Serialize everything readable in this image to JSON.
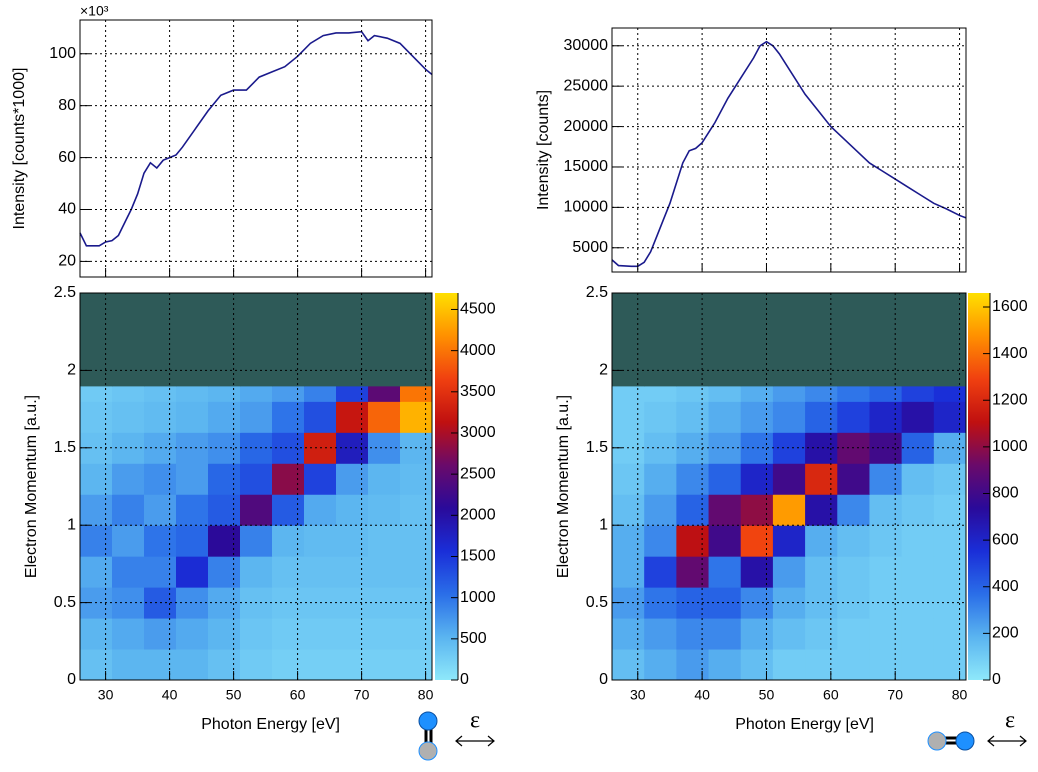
{
  "chart_data": [
    {
      "type": "line",
      "ylabel": "Intensity [counts*1000]",
      "y_multiplier": "×10³",
      "xlim": [
        26,
        81
      ],
      "xticks": [
        30,
        40,
        50,
        60,
        70,
        80
      ],
      "ylim": [
        14,
        113
      ],
      "yticks": [
        20,
        40,
        60,
        80,
        100
      ],
      "grid": true,
      "x": [
        26,
        27,
        29,
        30,
        31,
        32,
        33,
        34,
        35,
        36,
        37,
        38,
        39,
        40,
        41,
        42,
        44,
        46,
        48,
        50,
        52,
        54,
        56,
        58,
        60,
        62,
        64,
        66,
        68,
        70,
        71,
        72,
        74,
        76,
        78,
        80,
        81
      ],
      "series": [
        {
          "color": "#1a1a8c",
          "values": [
            31,
            26,
            26,
            27.5,
            28,
            30,
            35,
            40,
            46,
            54,
            58,
            56,
            59,
            60,
            61,
            64,
            71,
            78,
            84,
            86,
            86,
            91,
            93,
            95,
            99,
            104,
            107,
            108,
            108,
            108.5,
            105,
            107,
            106,
            104,
            99,
            94,
            92
          ]
        }
      ]
    },
    {
      "type": "heatmap",
      "xlabel": "Photon Energy [eV]",
      "ylabel": "Electron Momentum [a.u.]",
      "polarization_label": "ε",
      "xlim": [
        26,
        81
      ],
      "xticks": [
        30,
        40,
        50,
        60,
        70,
        80
      ],
      "ylim": [
        0,
        2.5
      ],
      "yticks": [
        0,
        0.5,
        1,
        1.5,
        2,
        2.5
      ],
      "grid": true,
      "xbins": [
        26,
        31,
        36,
        41,
        46,
        51,
        56,
        61,
        66,
        71,
        76,
        81
      ],
      "ybins": [
        0,
        0.2,
        0.4,
        0.6,
        0.8,
        1.0,
        1.2,
        1.4,
        1.6,
        1.8,
        1.9,
        2.5
      ],
      "z": [
        [
          400,
          500,
          500,
          500,
          400,
          300,
          250,
          250,
          250,
          250,
          250
        ],
        [
          500,
          600,
          700,
          600,
          500,
          350,
          300,
          300,
          300,
          300,
          300
        ],
        [
          700,
          800,
          1200,
          800,
          600,
          400,
          350,
          350,
          350,
          350,
          350
        ],
        [
          600,
          900,
          900,
          1600,
          900,
          500,
          400,
          400,
          400,
          400,
          400
        ],
        [
          900,
          700,
          1000,
          1100,
          2100,
          900,
          500,
          450,
          450,
          400,
          400
        ],
        [
          700,
          900,
          700,
          1000,
          1200,
          2400,
          1200,
          600,
          500,
          450,
          400
        ],
        [
          500,
          700,
          800,
          700,
          1100,
          1300,
          2800,
          1400,
          700,
          500,
          450
        ],
        [
          400,
          500,
          600,
          700,
          800,
          1100,
          1300,
          3300,
          1800,
          800,
          500
        ],
        [
          350,
          400,
          450,
          500,
          600,
          700,
          1000,
          1300,
          3200,
          3900,
          4400
        ],
        [
          300,
          350,
          400,
          450,
          500,
          600,
          700,
          900,
          1400,
          2500,
          4000
        ],
        [
          null,
          null,
          null,
          null,
          null,
          null,
          null,
          null,
          null,
          null,
          null
        ]
      ],
      "zlim": [
        0,
        4700
      ],
      "zticks": [
        0,
        500,
        1000,
        1500,
        2000,
        2500,
        3000,
        3500,
        4000,
        4500
      ],
      "colors": [
        "#8ee8fa",
        "#5ab4f0",
        "#2a6ee8",
        "#1a2ed8",
        "#2a0a9a",
        "#6a0a6a",
        "#c01010",
        "#f04010",
        "#ff9000",
        "#ffe000"
      ],
      "null_color": "#2e5a58"
    },
    {
      "type": "line",
      "ylabel": "Intensity [counts]",
      "xlim": [
        26,
        81
      ],
      "xticks": [
        30,
        40,
        50,
        60,
        70,
        80
      ],
      "ylim": [
        2000,
        32200
      ],
      "yticks": [
        5000,
        10000,
        15000,
        20000,
        25000,
        30000
      ],
      "grid": true,
      "x": [
        26,
        27,
        29,
        30,
        31,
        32,
        33,
        34,
        35,
        36,
        37,
        38,
        39,
        40,
        42,
        44,
        46,
        48,
        49,
        50,
        51,
        52,
        54,
        56,
        58,
        60,
        62,
        64,
        66,
        68,
        70,
        72,
        74,
        76,
        78,
        80,
        81
      ],
      "series": [
        {
          "color": "#1a1a8c",
          "values": [
            3500,
            2800,
            2700,
            2700,
            3200,
            4500,
            6500,
            8500,
            10500,
            13000,
            15500,
            17000,
            17300,
            18000,
            20500,
            23500,
            26000,
            28500,
            30000,
            30500,
            30000,
            29000,
            26500,
            24000,
            22000,
            20000,
            18500,
            17000,
            15500,
            14500,
            13500,
            12500,
            11500,
            10500,
            9800,
            9000,
            8700
          ]
        }
      ]
    },
    {
      "type": "heatmap",
      "xlabel": "Photon Energy [eV]",
      "ylabel": "Electron Momentum [a.u.]",
      "polarization_label": "ε",
      "xlim": [
        26,
        81
      ],
      "xticks": [
        30,
        40,
        50,
        60,
        70,
        80
      ],
      "ylim": [
        0,
        2.5
      ],
      "yticks": [
        0,
        0.5,
        1,
        1.5,
        2,
        2.5
      ],
      "grid": true,
      "xbins": [
        26,
        31,
        36,
        41,
        46,
        51,
        56,
        61,
        66,
        71,
        76,
        81
      ],
      "ybins": [
        0,
        0.2,
        0.4,
        0.6,
        0.8,
        1.0,
        1.2,
        1.4,
        1.6,
        1.8,
        1.9,
        2.5
      ],
      "z": [
        [
          150,
          200,
          250,
          200,
          150,
          100,
          100,
          100,
          100,
          100,
          100
        ],
        [
          200,
          250,
          300,
          300,
          200,
          150,
          120,
          100,
          100,
          100,
          100
        ],
        [
          250,
          350,
          400,
          400,
          300,
          200,
          150,
          120,
          100,
          100,
          100
        ],
        [
          200,
          500,
          900,
          350,
          700,
          250,
          150,
          120,
          100,
          100,
          100
        ],
        [
          200,
          300,
          1100,
          800,
          1300,
          600,
          200,
          150,
          120,
          100,
          100
        ],
        [
          150,
          250,
          400,
          900,
          1000,
          1500,
          700,
          300,
          150,
          120,
          100
        ],
        [
          120,
          200,
          300,
          400,
          600,
          800,
          1200,
          800,
          300,
          150,
          120
        ],
        [
          100,
          150,
          200,
          250,
          350,
          500,
          700,
          900,
          800,
          400,
          200
        ],
        [
          100,
          120,
          150,
          200,
          250,
          300,
          400,
          500,
          600,
          700,
          600
        ],
        [
          100,
          100,
          120,
          150,
          200,
          250,
          300,
          350,
          400,
          500,
          550
        ],
        [
          null,
          null,
          null,
          null,
          null,
          null,
          null,
          null,
          null,
          null,
          null
        ]
      ],
      "zlim": [
        0,
        1660
      ],
      "zticks": [
        0,
        200,
        400,
        600,
        800,
        1000,
        1200,
        1400,
        1600
      ],
      "colors": [
        "#8ee8fa",
        "#5ab4f0",
        "#2a6ee8",
        "#1a2ed8",
        "#2a0a9a",
        "#6a0a6a",
        "#c01010",
        "#f04010",
        "#ff9000",
        "#ffe000"
      ],
      "null_color": "#2e5a58"
    }
  ]
}
